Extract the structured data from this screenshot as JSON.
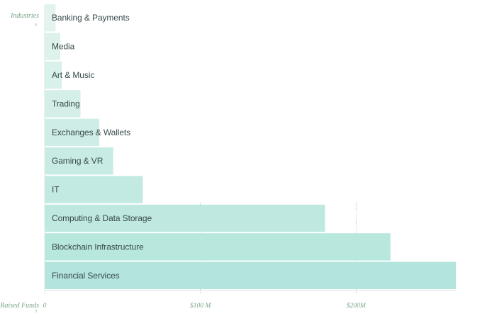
{
  "chart_data": {
    "type": "bar",
    "orientation": "horizontal",
    "title": "",
    "ylabel": "Industries",
    "xlabel": "Raised Funds",
    "categories": [
      "Banking & Payments",
      "Media",
      "Art & Music",
      "Trading",
      "Exchanges & Wallets",
      "Gaming & VR",
      "IT",
      "Computing & Data Storage",
      "Blockchain Infrastructure",
      "Financial Services"
    ],
    "values": [
      7,
      10,
      11,
      23,
      35,
      44,
      63,
      180,
      222,
      264
    ],
    "value_unit": "$M",
    "xlim": [
      0,
      264
    ],
    "x_ticks": [
      {
        "value": 0,
        "label": "0"
      },
      {
        "value": 100,
        "label": "$100 M"
      },
      {
        "value": 200,
        "label": "$200M"
      }
    ],
    "bar_color_light": "#e3f4ee",
    "bar_color_dark": "#b3e5dc",
    "axis_text_color": "#7aa58a",
    "gridlines": true,
    "legend": "none"
  }
}
